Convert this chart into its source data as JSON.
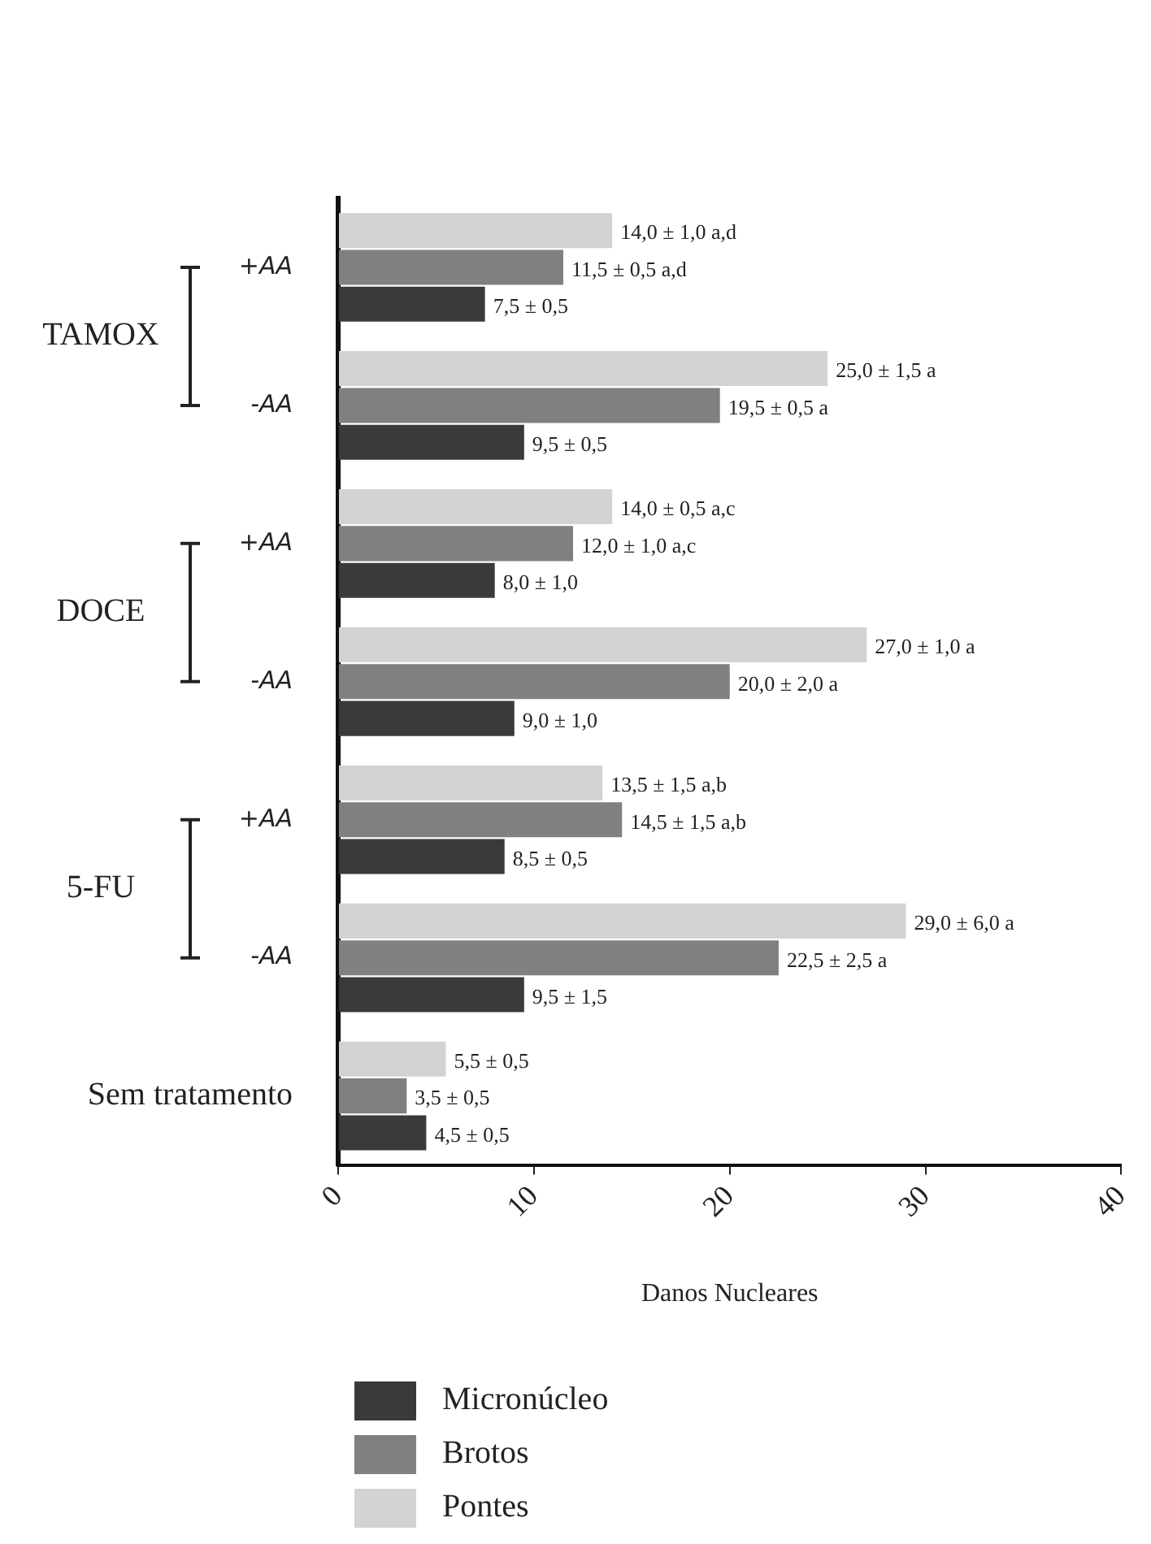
{
  "chart_data": {
    "type": "bar",
    "orientation": "horizontal",
    "categories": [
      "+AA",
      "-AA",
      "+AA",
      "-AA",
      "+AA",
      "-AA",
      "Sem tratamento"
    ],
    "annotations": [
      "TAMOX",
      "DOCE",
      "5-FU"
    ],
    "xlabel": "Danos Nucleares",
    "xlim": [
      0,
      40
    ],
    "xticks": [
      0,
      10,
      20,
      30,
      40
    ],
    "grid": false,
    "legend": "bottom",
    "series": [
      {
        "name": "Micronúcleo",
        "color": "#3a3a3a",
        "values": [
          7.5,
          9.5,
          8.0,
          9.0,
          8.5,
          9.5,
          4.5
        ],
        "value_labels": [
          "7,5 ± 0,5",
          "9,5 ± 0,5",
          "8,0 ± 1,0",
          "9,0 ± 1,0",
          "8,5 ± 0,5",
          "9,5 ± 1,5",
          "4,5 ± 0,5"
        ]
      },
      {
        "name": "Brotos",
        "color": "#808080",
        "values": [
          11.5,
          19.5,
          12.0,
          20.0,
          14.5,
          22.5,
          3.5
        ],
        "value_labels": [
          "11,5 ± 0,5 a,d",
          "19,5 ± 0,5 a",
          "12,0 ± 1,0 a,c",
          "20,0 ± 2,0 a",
          "14,5 ± 1,5 a,b",
          "22,5 ± 2,5 a",
          "3,5 ± 0,5"
        ]
      },
      {
        "name": "Pontes",
        "color": "#d3d3d3",
        "values": [
          14.0,
          25.0,
          14.0,
          27.0,
          13.5,
          29.0,
          5.5
        ],
        "value_labels": [
          "14,0 ± 1,0 a,d",
          "25,0 ± 1,5 a",
          "14,0 ± 0,5 a,c",
          "27,0 ± 1,0 a",
          "13,5 ± 1,5 a,b",
          "29,0 ± 6,0 a",
          "5,5 ± 0,5"
        ]
      }
    ]
  }
}
